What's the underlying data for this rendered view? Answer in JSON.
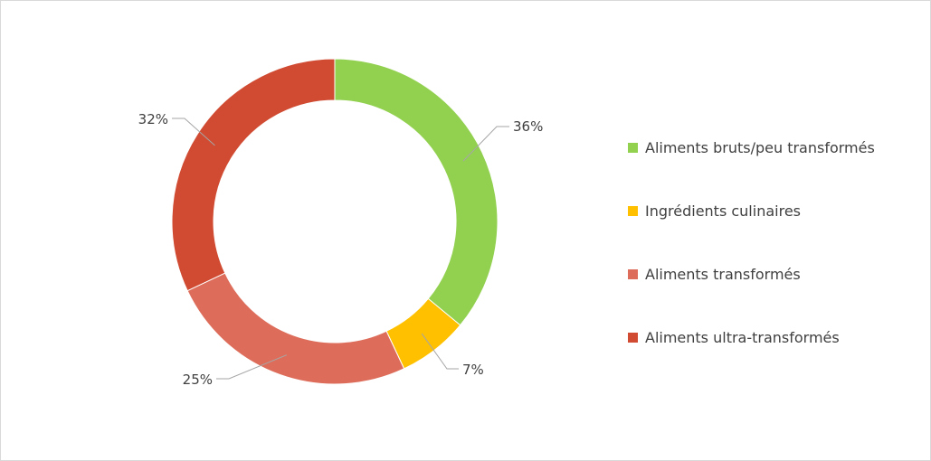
{
  "chart_data": {
    "type": "pie",
    "variant": "donut",
    "title": "",
    "categories": [
      "Aliments bruts/peu transformés",
      "Ingrédients culinaires",
      "Aliments transformés",
      "Aliments ultra-transformés"
    ],
    "values": [
      36,
      7,
      25,
      32
    ],
    "value_labels": [
      "36%",
      "7%",
      "25%",
      "32%"
    ],
    "colors": [
      "#92d050",
      "#ffc000",
      "#dd6d5a",
      "#d04b32"
    ],
    "legend_position": "right"
  }
}
